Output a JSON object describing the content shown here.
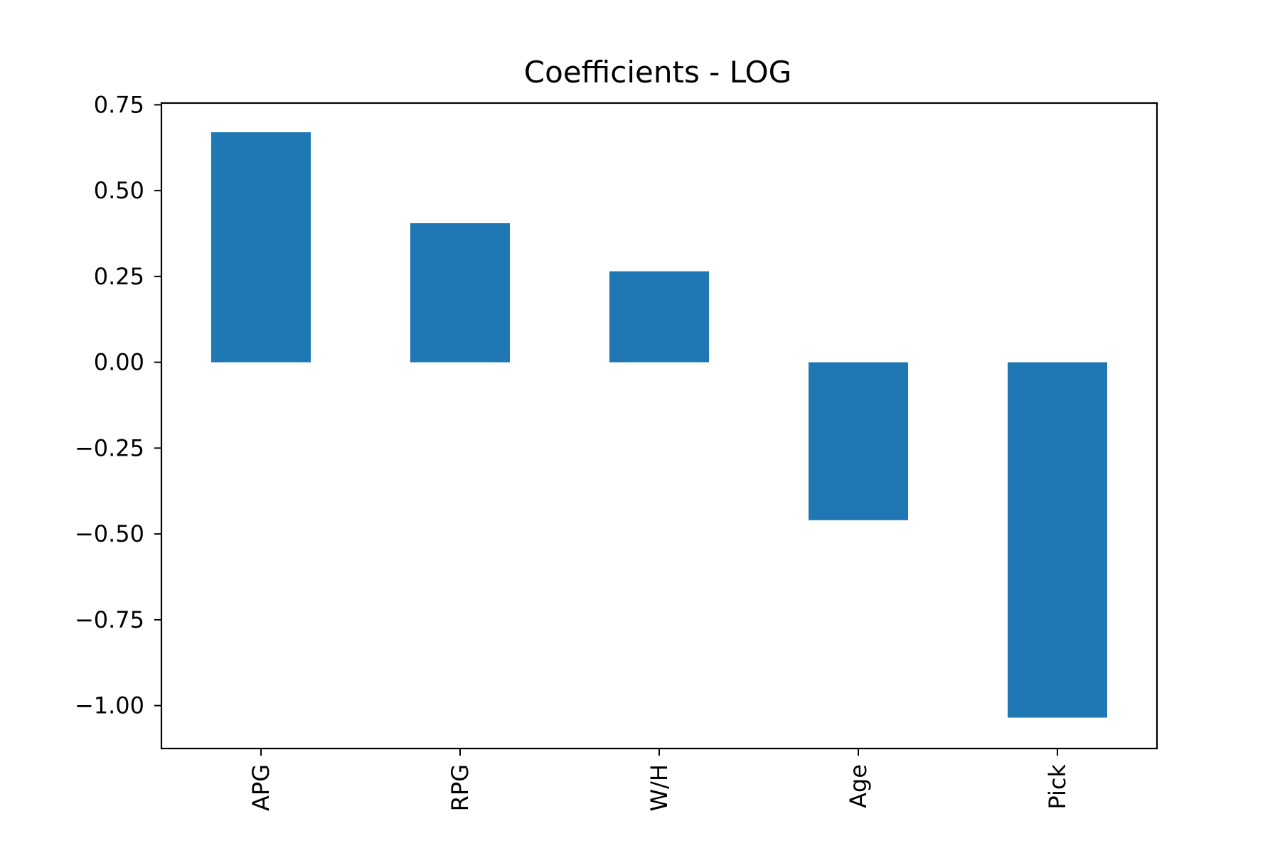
{
  "chart_data": {
    "type": "bar",
    "title": "Coefficients - LOG",
    "xlabel": "",
    "ylabel": "",
    "categories": [
      "APG",
      "RPG",
      "W/H",
      "Age",
      "Pick"
    ],
    "values": [
      0.67,
      0.405,
      0.265,
      -0.46,
      -1.035
    ],
    "ylim": [
      -1.125,
      0.755
    ],
    "yticks": [
      0.75,
      0.5,
      0.25,
      0.0,
      -0.25,
      -0.5,
      -0.75,
      -1.0
    ],
    "ytick_labels": [
      "0.75",
      "0.50",
      "0.25",
      "0.00",
      "−0.25",
      "−0.50",
      "−0.75",
      "−1.00"
    ],
    "bar_color": "#1f77b4",
    "grid": false,
    "legend": "none",
    "xtick_rotation": "vertical"
  }
}
